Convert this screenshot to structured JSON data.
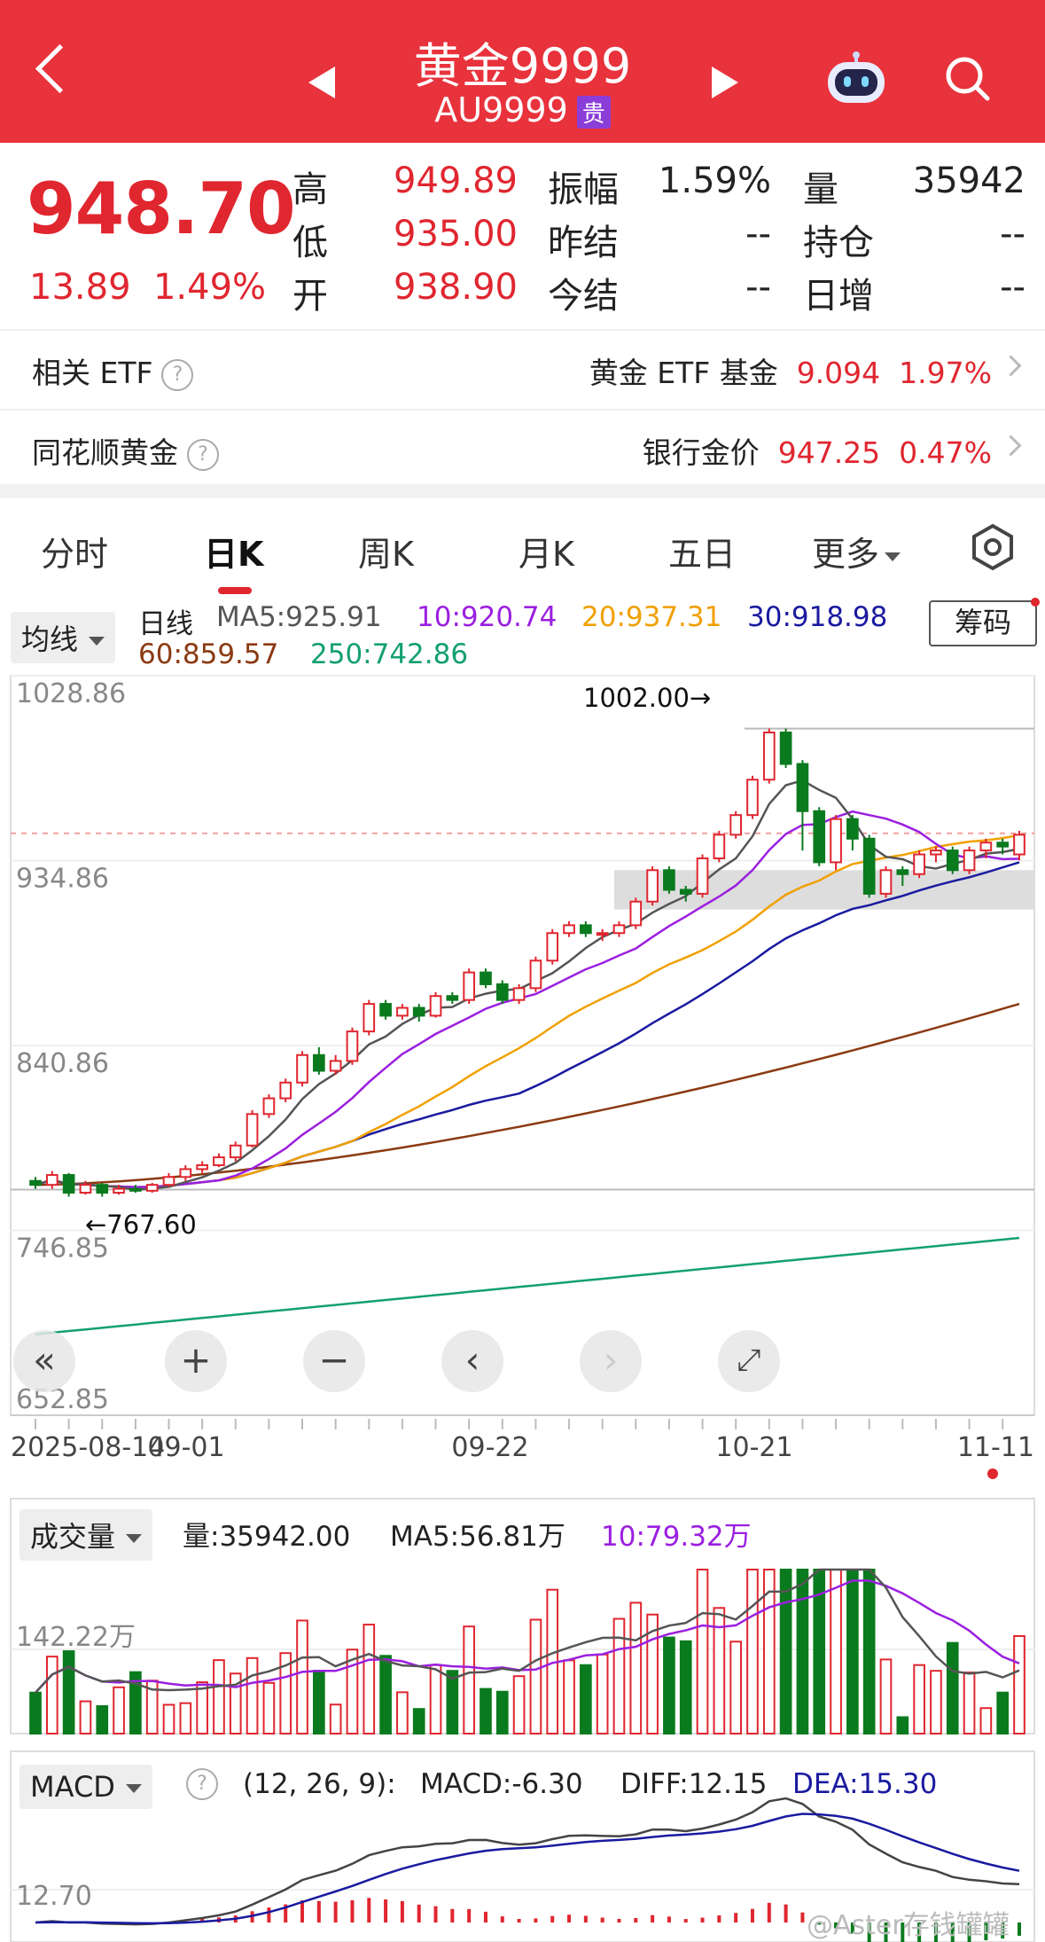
{
  "header": {
    "title": "黄金9999",
    "code": "AU9999",
    "badge": "贵"
  },
  "quote": {
    "price": "948.70",
    "change": "13.89",
    "change_pct": "1.49%",
    "rows": [
      [
        {
          "k": "高",
          "v": "949.89"
        },
        {
          "k": "振幅",
          "v": "1.59%"
        },
        {
          "k": "量",
          "v": "35942"
        }
      ],
      [
        {
          "k": "低",
          "v": "935.00"
        },
        {
          "k": "昨结",
          "v": "--"
        },
        {
          "k": "持仓",
          "v": "--"
        }
      ],
      [
        {
          "k": "开",
          "v": "938.90"
        },
        {
          "k": "今结",
          "v": "--"
        },
        {
          "k": "日增",
          "v": "--"
        }
      ]
    ]
  },
  "etf": {
    "label": "相关 ETF",
    "name": "黄金 ETF 基金",
    "price": "9.094",
    "pct": "1.97%"
  },
  "ths": {
    "label": "同花顺黄金",
    "name": "银行金价",
    "price": "947.25",
    "pct": "0.47%"
  },
  "tabs": [
    "分时",
    "日K",
    "周K",
    "月K",
    "五日",
    "更多"
  ],
  "active_tab": "日K",
  "ma": {
    "selector": "均线",
    "kind": "日线",
    "ma5": "MA5:925.91",
    "ma10": "10:920.74",
    "ma20": "20:937.31",
    "ma30": "30:918.98",
    "ma60": "60:859.57",
    "ma250": "250:742.86",
    "chip_btn": "筹码"
  },
  "kchart": {
    "y_ticks": [
      "1028.86",
      "934.86",
      "840.86",
      "746.85",
      "652.85"
    ],
    "high_note": "1002.00→",
    "low_note": "←767.60",
    "x_ticks": [
      "2025-08-14",
      "09-01",
      "09-22",
      "10-21",
      "11-11"
    ]
  },
  "volume": {
    "selector": "成交量",
    "vol": "量:35942.00",
    "ma5": "MA5:56.81万",
    "ma10": "10:79.32万",
    "y_tick": "142.22万"
  },
  "macd": {
    "selector": "MACD",
    "params": "(12, 26, 9):",
    "macd": "MACD:-6.30",
    "diff": "DIFF:12.15",
    "dea": "DEA:15.30",
    "y_tick": "12.70"
  },
  "watermark": "@Aster存钱罐罐",
  "colors": {
    "up": "#e0262f",
    "down": "#0a7a1e",
    "ma5": "#555555",
    "ma10": "#9b1fe0",
    "ma20": "#f0a000",
    "ma30": "#1a1aa0",
    "ma60": "#8b3a12",
    "ma250": "#14a070"
  },
  "chart_data": {
    "type": "candlestick",
    "ylim": [
      652.85,
      1028.86
    ],
    "candles": [
      [
        772,
        770,
        774,
        768
      ],
      [
        770,
        775,
        777,
        768
      ],
      [
        775,
        766,
        776,
        764
      ],
      [
        766,
        770,
        772,
        765
      ],
      [
        770,
        766,
        771,
        764
      ],
      [
        766,
        768,
        770,
        765
      ],
      [
        768,
        767,
        770,
        766
      ],
      [
        767,
        770,
        771,
        766
      ],
      [
        770,
        774,
        776,
        769
      ],
      [
        774,
        778,
        780,
        772
      ],
      [
        778,
        780,
        782,
        776
      ],
      [
        780,
        784,
        786,
        779
      ],
      [
        784,
        790,
        792,
        782
      ],
      [
        790,
        806,
        808,
        789
      ],
      [
        806,
        814,
        816,
        804
      ],
      [
        814,
        822,
        824,
        812
      ],
      [
        822,
        836,
        838,
        820
      ],
      [
        836,
        828,
        840,
        826
      ],
      [
        828,
        833,
        836,
        826
      ],
      [
        833,
        848,
        850,
        831
      ],
      [
        848,
        862,
        864,
        846
      ],
      [
        862,
        856,
        864,
        854
      ],
      [
        856,
        860,
        862,
        854
      ],
      [
        860,
        856,
        862,
        853
      ],
      [
        856,
        866,
        868,
        855
      ],
      [
        866,
        864,
        868,
        862
      ],
      [
        864,
        878,
        880,
        862
      ],
      [
        878,
        872,
        880,
        870
      ],
      [
        872,
        864,
        874,
        862
      ],
      [
        864,
        870,
        872,
        862
      ],
      [
        870,
        884,
        886,
        868
      ],
      [
        884,
        898,
        900,
        882
      ],
      [
        898,
        902,
        904,
        896
      ],
      [
        902,
        898,
        904,
        896
      ],
      [
        898,
        898,
        900,
        894
      ],
      [
        898,
        902,
        904,
        896
      ],
      [
        902,
        914,
        916,
        900
      ],
      [
        914,
        930,
        932,
        912
      ],
      [
        930,
        920,
        932,
        918
      ],
      [
        920,
        918,
        922,
        914
      ],
      [
        918,
        936,
        938,
        916
      ],
      [
        936,
        948,
        950,
        934
      ],
      [
        948,
        958,
        960,
        946
      ],
      [
        958,
        976,
        978,
        956
      ],
      [
        976,
        1000,
        1002,
        974
      ],
      [
        1000,
        984,
        1002,
        982
      ],
      [
        984,
        960,
        986,
        940
      ],
      [
        960,
        934,
        962,
        932
      ],
      [
        934,
        956,
        958,
        930
      ],
      [
        956,
        946,
        958,
        940
      ],
      [
        946,
        918,
        948,
        916
      ],
      [
        918,
        930,
        932,
        916
      ],
      [
        930,
        928,
        932,
        922
      ],
      [
        928,
        938,
        940,
        926
      ],
      [
        938,
        940,
        942,
        934
      ],
      [
        940,
        930,
        942,
        928
      ],
      [
        930,
        940,
        942,
        928
      ],
      [
        940,
        944,
        946,
        936
      ],
      [
        944,
        942,
        946,
        938
      ],
      [
        938,
        948,
        950,
        935
      ]
    ]
  }
}
